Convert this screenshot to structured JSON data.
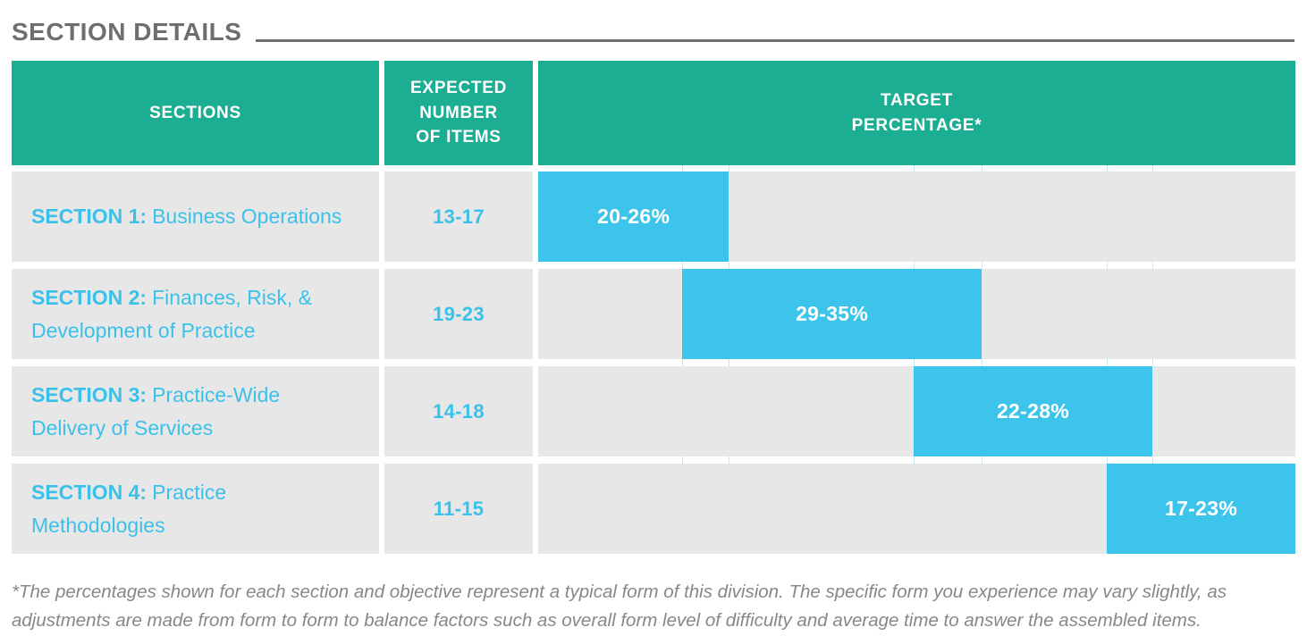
{
  "title": "SECTION DETAILS",
  "colors": {
    "header_teal": "#1CAE92",
    "bar_cyan": "#3DC4EB",
    "text_cyan": "#3BC1E9",
    "row_gray": "#E8E7E8",
    "title_gray": "#6C6E70",
    "footnote_gray": "#85888B",
    "gridline_blue": "#C9E6F1"
  },
  "table": {
    "headers": [
      {
        "label": "SECTIONS"
      },
      {
        "label": "EXPECTED\nNUMBER\nOF ITEMS"
      },
      {
        "label": "TARGET\nPERCENTAGE*"
      }
    ],
    "rows": [
      {
        "section_label": "SECTION 1:",
        "section_name": "Business Operations",
        "expected_items": "13-17",
        "target_percentage": "20-26%",
        "bar": {
          "left_pct": 0,
          "width_pct": 25.2
        }
      },
      {
        "section_label": "SECTION 2:",
        "section_name": "Finances, Risk, & Development of Practice",
        "expected_items": "19-23",
        "target_percentage": "29-35%",
        "bar": {
          "left_pct": 19.0,
          "width_pct": 39.6
        }
      },
      {
        "section_label": "SECTION 3:",
        "section_name": "Practice-Wide Delivery of Services",
        "expected_items": "14-18",
        "target_percentage": "22-28%",
        "bar": {
          "left_pct": 49.6,
          "width_pct": 31.5
        }
      },
      {
        "section_label": "SECTION 4:",
        "section_name": "Practice Methodologies",
        "expected_items": "11-15",
        "target_percentage": "17-23%",
        "bar": {
          "left_pct": 75.1,
          "width_pct": 24.9
        }
      }
    ],
    "gridline_positions_pct": [
      19.0,
      25.2,
      49.6,
      58.6,
      75.1,
      81.1
    ]
  },
  "footnote": "*The percentages shown for each section and objective represent a typical form of this division. The specific form you experience may vary slightly, as adjustments are made from form to form to balance factors such as overall form level of difficulty and average time to answer the assembled items.",
  "chart_data": {
    "type": "table",
    "title": "SECTION DETAILS",
    "columns": [
      "SECTIONS",
      "EXPECTED NUMBER OF ITEMS",
      "TARGET PERCENTAGE*"
    ],
    "rows": [
      {
        "section": "SECTION 1: Business Operations",
        "expected_items_min": 13,
        "expected_items_max": 17,
        "target_pct_min": 20,
        "target_pct_max": 26
      },
      {
        "section": "SECTION 2: Finances, Risk, & Development of Practice",
        "expected_items_min": 19,
        "expected_items_max": 23,
        "target_pct_min": 29,
        "target_pct_max": 35
      },
      {
        "section": "SECTION 3: Practice-Wide Delivery of Services",
        "expected_items_min": 14,
        "expected_items_max": 18,
        "target_pct_min": 22,
        "target_pct_max": 28
      },
      {
        "section": "SECTION 4: Practice Methodologies",
        "expected_items_min": 11,
        "expected_items_max": 15,
        "target_pct_min": 17,
        "target_pct_max": 23
      }
    ],
    "bar_style": "horizontal staggered range bars cascading left to right across the Target Percentage column",
    "legend": "none",
    "grid": "faint vertical hairlines at bar boundaries, visible only in white row gaps",
    "footnote": "*The percentages shown for each section and objective represent a typical form of this division. The specific form you experience may vary slightly, as adjustments are made from form to form to balance factors such as overall form level of difficulty and average time to answer the assembled items."
  }
}
